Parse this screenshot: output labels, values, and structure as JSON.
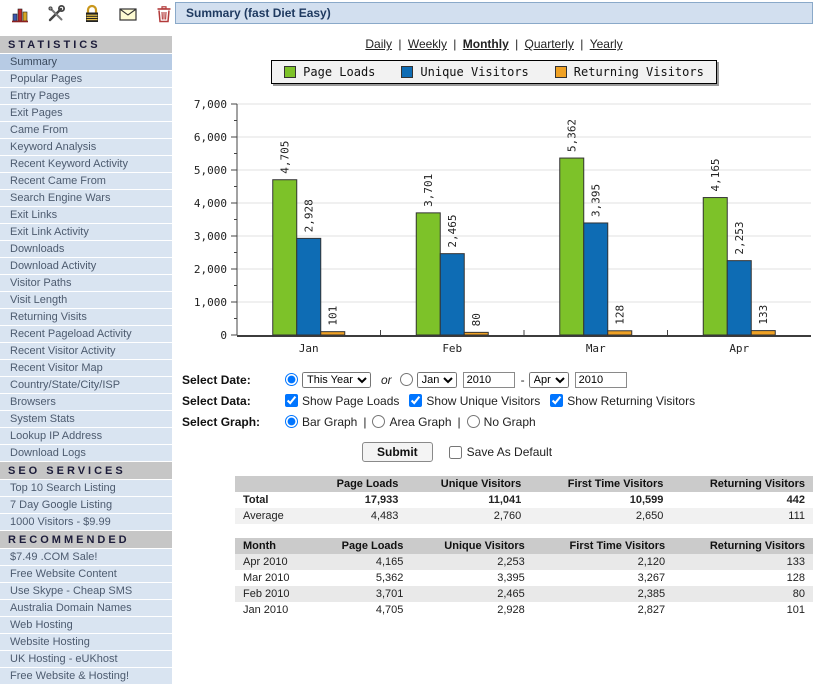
{
  "toolbar": {
    "icons": [
      "bar-chart-icon",
      "tools-icon",
      "lock-icon",
      "email-icon",
      "trash-icon"
    ]
  },
  "sidebar": {
    "selected": "Summary",
    "sections": [
      {
        "title": "STATISTICS",
        "items": [
          "Summary",
          "Popular Pages",
          "Entry Pages",
          "Exit Pages",
          "Came From",
          "Keyword Analysis",
          "Recent Keyword Activity",
          "Recent Came From",
          "Search Engine Wars",
          "Exit Links",
          "Exit Link Activity",
          "Downloads",
          "Download Activity",
          "Visitor Paths",
          "Visit Length",
          "Returning Visits",
          "Recent Pageload Activity",
          "Recent Visitor Activity",
          "Recent Visitor Map",
          "Country/State/City/ISP",
          "Browsers",
          "System Stats",
          "Lookup IP Address",
          "Download Logs"
        ]
      },
      {
        "title": "SEO SERVICES",
        "items": [
          "Top 10 Search Listing",
          "7 Day Google Listing",
          "1000 Visitors - $9.99"
        ]
      },
      {
        "title": "RECOMMENDED",
        "items": [
          "$7.49 .COM Sale!",
          "Free Website Content",
          "Use Skype - Cheap SMS",
          "Australia Domain Names",
          "Web Hosting",
          "Website Hosting",
          "UK Hosting - eUKhost",
          "Free Website & Hosting!"
        ]
      }
    ]
  },
  "header": {
    "title": "Summary (fast Diet Easy)"
  },
  "period_nav": {
    "items": [
      "Daily",
      "Weekly",
      "Monthly",
      "Quarterly",
      "Yearly"
    ],
    "active": "Monthly",
    "separator": "|"
  },
  "chart_data": {
    "type": "bar",
    "title": "",
    "categories": [
      "Jan",
      "Feb",
      "Mar",
      "Apr"
    ],
    "series": [
      {
        "name": "Page Loads",
        "color": "#7dc229",
        "values": [
          4705,
          3701,
          5362,
          4165
        ]
      },
      {
        "name": "Unique Visitors",
        "color": "#0e6cb4",
        "values": [
          2928,
          2465,
          3395,
          2253
        ]
      },
      {
        "name": "Returning Visitors",
        "color": "#efa124",
        "values": [
          101,
          80,
          128,
          133
        ]
      }
    ],
    "xlabel": "",
    "ylabel": "",
    "ylim": [
      0,
      7000
    ],
    "ytick_step": 1000,
    "grid": true,
    "legend_position": "top",
    "bar_labels_rotated": true
  },
  "form": {
    "select_date": {
      "label": "Select Date:",
      "this_year_checked": true,
      "this_year_value": "This Year",
      "or_text": "or",
      "range_checked": false,
      "from_month": "Jan",
      "from_year": "2010",
      "range_dash": "-",
      "to_month": "Apr",
      "to_year": "2010"
    },
    "select_data": {
      "label": "Select Data:",
      "checkboxes": [
        {
          "label": "Show Page Loads",
          "checked": true
        },
        {
          "label": "Show Unique Visitors",
          "checked": true
        },
        {
          "label": "Show Returning Visitors",
          "checked": true
        }
      ]
    },
    "select_graph": {
      "label": "Select Graph:",
      "separator": "|",
      "options": [
        {
          "label": "Bar Graph",
          "checked": true
        },
        {
          "label": "Area Graph",
          "checked": false
        },
        {
          "label": "No Graph",
          "checked": false
        }
      ]
    },
    "submit_label": "Submit",
    "save_default_label": "Save As Default",
    "save_default_checked": false
  },
  "summary_table": {
    "headers": [
      "",
      "Page Loads",
      "Unique Visitors",
      "First Time Visitors",
      "Returning Visitors"
    ],
    "rows": [
      {
        "label": "Total",
        "values": [
          "17,933",
          "11,041",
          "10,599",
          "442"
        ],
        "bold": true
      },
      {
        "label": "Average",
        "values": [
          "4,483",
          "2,760",
          "2,650",
          "111"
        ],
        "bold": false
      }
    ]
  },
  "monthly_table": {
    "headers": [
      "Month",
      "Page Loads",
      "Unique Visitors",
      "First Time Visitors",
      "Returning Visitors"
    ],
    "rows": [
      [
        "Apr 2010",
        "4,165",
        "2,253",
        "2,120",
        "133"
      ],
      [
        "Mar 2010",
        "5,362",
        "3,395",
        "3,267",
        "128"
      ],
      [
        "Feb 2010",
        "3,701",
        "2,465",
        "2,385",
        "80"
      ],
      [
        "Jan 2010",
        "4,705",
        "2,928",
        "2,827",
        "101"
      ]
    ]
  }
}
